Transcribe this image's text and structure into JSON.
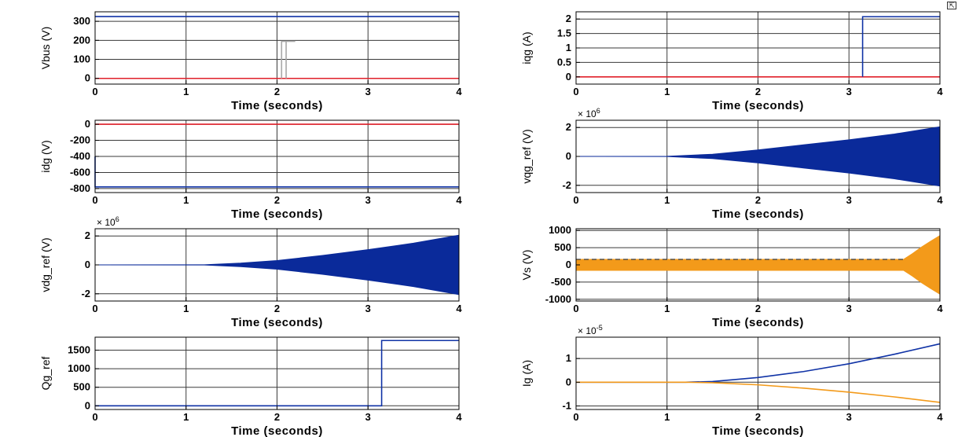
{
  "undock_icon": "undock-icon",
  "colors": {
    "blue": "#1033a6",
    "fill_blue": "#0a2a9a",
    "red": "#e0202a",
    "orange": "#f39a1a",
    "gray": "#a8a8a8",
    "grid": "#3a3a3a"
  },
  "chart_data": [
    {
      "type": "line",
      "ylabel": "Vbus (V)",
      "xlabel": "Time (seconds)",
      "xlim": [
        0,
        4
      ],
      "ylim": [
        -30,
        350
      ],
      "xticks": [
        "0",
        "1",
        "2",
        "3",
        "4"
      ],
      "yticks": [
        {
          "v": 0,
          "t": "0"
        },
        {
          "v": 100,
          "t": "100"
        },
        {
          "v": 200,
          "t": "200"
        },
        {
          "v": 300,
          "t": "300"
        }
      ],
      "multiplier": "",
      "grid": true,
      "series": [
        {
          "color": "blue",
          "kind": "line",
          "points": [
            [
              0,
              325
            ],
            [
              4,
              325
            ]
          ]
        },
        {
          "color": "red",
          "kind": "line",
          "points": [
            [
              0,
              0
            ],
            [
              4,
              0
            ]
          ]
        },
        {
          "color": "gray",
          "kind": "line",
          "points": [
            [
              2.05,
              0
            ],
            [
              2.05,
              195
            ],
            [
              2.08,
              195
            ],
            [
              2.08,
              195
            ],
            [
              2.2,
              195
            ]
          ]
        },
        {
          "color": "gray",
          "kind": "line",
          "points": [
            [
              2.1,
              195
            ],
            [
              2.1,
              0
            ]
          ]
        }
      ]
    },
    {
      "type": "line",
      "ylabel": "iqg (A)",
      "xlabel": "Time (seconds)",
      "xlim": [
        0,
        4
      ],
      "ylim": [
        -0.25,
        2.25
      ],
      "xticks": [
        "0",
        "1",
        "2",
        "3",
        "4"
      ],
      "yticks": [
        {
          "v": 0,
          "t": "0"
        },
        {
          "v": 0.5,
          "t": "0.5"
        },
        {
          "v": 1,
          "t": "1"
        },
        {
          "v": 1.5,
          "t": "1.5"
        },
        {
          "v": 2,
          "t": "2"
        }
      ],
      "multiplier": "",
      "grid": true,
      "series": [
        {
          "color": "red",
          "kind": "line",
          "points": [
            [
              0,
              0
            ],
            [
              4,
              0
            ]
          ]
        },
        {
          "color": "blue",
          "kind": "line",
          "points": [
            [
              3.15,
              0
            ],
            [
              3.15,
              2.08
            ],
            [
              4,
              2.08
            ]
          ]
        }
      ]
    },
    {
      "type": "line",
      "ylabel": "idg (V)",
      "xlabel": "Time (seconds)",
      "xlim": [
        0,
        4
      ],
      "ylim": [
        -850,
        50
      ],
      "xticks": [
        "0",
        "1",
        "2",
        "3",
        "4"
      ],
      "yticks": [
        {
          "v": 0,
          "t": "0"
        },
        {
          "v": -200,
          "t": "-200"
        },
        {
          "v": -400,
          "t": "-400"
        },
        {
          "v": -600,
          "t": "-600"
        },
        {
          "v": -800,
          "t": "-800"
        }
      ],
      "multiplier": "",
      "grid": true,
      "series": [
        {
          "color": "red",
          "kind": "line",
          "points": [
            [
              0,
              0
            ],
            [
              4,
              0
            ]
          ]
        },
        {
          "color": "blue",
          "kind": "line",
          "points": [
            [
              0,
              -400
            ],
            [
              0,
              -780
            ],
            [
              4,
              -780
            ]
          ]
        }
      ]
    },
    {
      "type": "area",
      "ylabel": "vqg_ref (V)",
      "xlabel": "Time (seconds)",
      "xlim": [
        0,
        4
      ],
      "ylim": [
        -2.5,
        2.5
      ],
      "xticks": [
        "0",
        "1",
        "2",
        "3",
        "4"
      ],
      "yticks": [
        {
          "v": -2,
          "t": "-2"
        },
        {
          "v": 0,
          "t": "0"
        },
        {
          "v": 2,
          "t": "2"
        }
      ],
      "multiplier": "× 10",
      "multiplier_exp": "6",
      "grid": true,
      "series": [
        {
          "color": "fill_blue",
          "kind": "envelope",
          "points": [
            [
              0,
              0
            ],
            [
              1,
              0.01
            ],
            [
              1.5,
              0.15
            ],
            [
              2,
              0.45
            ],
            [
              2.5,
              0.8
            ],
            [
              3,
              1.15
            ],
            [
              3.5,
              1.55
            ],
            [
              4,
              2.05
            ]
          ]
        }
      ]
    },
    {
      "type": "area",
      "ylabel": "vdg_ref (V)",
      "xlabel": "Time (seconds)",
      "xlim": [
        0,
        4
      ],
      "ylim": [
        -2.5,
        2.5
      ],
      "xticks": [
        "0",
        "1",
        "2",
        "3",
        "4"
      ],
      "yticks": [
        {
          "v": -2,
          "t": "-2"
        },
        {
          "v": 0,
          "t": "0"
        },
        {
          "v": 2,
          "t": "2"
        }
      ],
      "multiplier": "× 10",
      "multiplier_exp": "6",
      "grid": true,
      "series": [
        {
          "color": "fill_blue",
          "kind": "envelope",
          "points": [
            [
              0,
              0
            ],
            [
              1.2,
              0.01
            ],
            [
              1.6,
              0.12
            ],
            [
              2,
              0.3
            ],
            [
              2.5,
              0.65
            ],
            [
              3,
              1.05
            ],
            [
              3.5,
              1.5
            ],
            [
              4,
              2.05
            ]
          ]
        }
      ]
    },
    {
      "type": "area",
      "ylabel": "Vs (V)",
      "xlabel": "Time (seconds)",
      "xlim": [
        0,
        4
      ],
      "ylim": [
        -1050,
        1050
      ],
      "xticks": [
        "0",
        "1",
        "2",
        "3",
        "4"
      ],
      "yticks": [
        {
          "v": -1000,
          "t": "-1000"
        },
        {
          "v": -500,
          "t": "-500"
        },
        {
          "v": 0,
          "t": "0"
        },
        {
          "v": 500,
          "t": "500"
        },
        {
          "v": 1000,
          "t": "1000"
        }
      ],
      "multiplier": "",
      "grid": true,
      "series": [
        {
          "color": "orange",
          "kind": "envelope",
          "points": [
            [
              0,
              160
            ],
            [
              3.6,
              160
            ],
            [
              3.7,
              330
            ],
            [
              3.8,
              520
            ],
            [
              3.9,
              690
            ],
            [
              4,
              850
            ]
          ]
        },
        {
          "color": "grid",
          "kind": "dash",
          "points": [
            [
              0,
              160
            ],
            [
              3.6,
              160
            ]
          ]
        }
      ]
    },
    {
      "type": "line",
      "ylabel": "Qg_ref",
      "xlabel": "Time (seconds)",
      "xlim": [
        0,
        4
      ],
      "ylim": [
        -100,
        1850
      ],
      "xticks": [
        "0",
        "1",
        "2",
        "3",
        "4"
      ],
      "yticks": [
        {
          "v": 0,
          "t": "0"
        },
        {
          "v": 500,
          "t": "500"
        },
        {
          "v": 1000,
          "t": "1000"
        },
        {
          "v": 1500,
          "t": "1500"
        }
      ],
      "multiplier": "",
      "grid": true,
      "series": [
        {
          "color": "blue",
          "kind": "line",
          "points": [
            [
              0,
              0
            ],
            [
              3.15,
              0
            ],
            [
              3.15,
              1760
            ],
            [
              4,
              1760
            ]
          ]
        }
      ]
    },
    {
      "type": "line",
      "ylabel": "Ig (A)",
      "xlabel": "Time (seconds)",
      "xlim": [
        0,
        4
      ],
      "ylim": [
        -1.15,
        1.9
      ],
      "xticks": [
        "0",
        "1",
        "2",
        "3",
        "4"
      ],
      "yticks": [
        {
          "v": -1,
          "t": "-1"
        },
        {
          "v": 0,
          "t": "0"
        },
        {
          "v": 1,
          "t": "1"
        }
      ],
      "multiplier": "× 10",
      "multiplier_exp": "-5",
      "grid": true,
      "series": [
        {
          "color": "blue",
          "kind": "line",
          "points": [
            [
              0,
              0
            ],
            [
              1.2,
              0
            ],
            [
              1.5,
              0.03
            ],
            [
              2,
              0.2
            ],
            [
              2.5,
              0.45
            ],
            [
              3,
              0.78
            ],
            [
              3.5,
              1.18
            ],
            [
              4,
              1.62
            ]
          ]
        },
        {
          "color": "orange",
          "kind": "line",
          "points": [
            [
              0,
              0
            ],
            [
              1.2,
              0
            ],
            [
              1.5,
              -0.02
            ],
            [
              2,
              -0.11
            ],
            [
              2.5,
              -0.25
            ],
            [
              3,
              -0.42
            ],
            [
              3.5,
              -0.62
            ],
            [
              4,
              -0.85
            ]
          ]
        }
      ]
    }
  ]
}
